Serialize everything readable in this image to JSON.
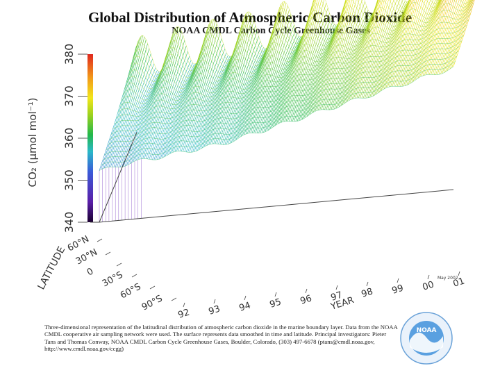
{
  "header": {
    "title": "Global Distribution of Atmospheric Carbon Dioxide",
    "subtitle": "NOAA CMDL Carbon Cycle Greenhouse Gases"
  },
  "chart_data": {
    "type": "surface",
    "ylabel": "CO₂ (μmol mol⁻¹)",
    "xlabel": "YEAR",
    "zlabel": "LATITUDE",
    "ylim": [
      340,
      380
    ],
    "y_ticks": [
      "380",
      "370",
      "360",
      "350",
      "340"
    ],
    "year_ticks": [
      "92",
      "93",
      "94",
      "95",
      "96",
      "97",
      "98",
      "99",
      "00",
      "01"
    ],
    "latitude_ticks": [
      "60°N",
      "30°N",
      "0",
      "30°S",
      "60°S",
      "90°S"
    ],
    "x_years": [
      1991.5,
      1992,
      1993,
      1994,
      1995,
      1996,
      1997,
      1998,
      1999,
      2000,
      2001,
      2001.5
    ],
    "latitudes": [
      -90,
      -60,
      -30,
      0,
      30,
      60,
      90
    ],
    "annual_mean_co2": [
      354,
      355,
      356,
      357,
      358,
      360,
      362,
      364,
      366,
      368,
      370,
      371
    ],
    "seasonal_amplitude_north": 10,
    "seasonal_amplitude_south": 1,
    "colorscale": [
      "#1a0030",
      "#5a1ea8",
      "#3a5ad8",
      "#2ab8c8",
      "#22b84a",
      "#9ed21e",
      "#f2e61a",
      "#f29a1a",
      "#e0281e"
    ],
    "date_stamp": "May 2002"
  },
  "caption": {
    "lines": [
      "Three-dimensional representation of the latitudinal distribution of atmospheric carbon dioxide in the marine boundary layer.  Data from the NOAA",
      "CMDL cooperative air sampling network were used.  The surface represents data smoothed in time and latitude.  Principal investigators:  Pieter",
      "Tans and Thomas Conway, NOAA CMDL Carbon Cycle Greenhouse Gases, Boulder, Colorado, (303) 497-6678 (ptans@cmdl.noaa.gov,",
      "http://www.cmdl.noaa.gov/ccgg)"
    ]
  },
  "logo": {
    "text": "NOAA"
  }
}
